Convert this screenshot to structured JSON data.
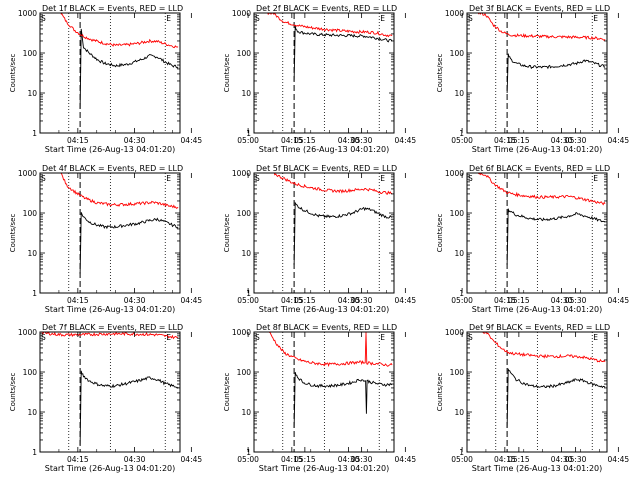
{
  "figure": {
    "xlabel": "Start Time (26-Aug-13 04:01:20)",
    "ylabel": "Counts/sec",
    "x_ticks": [
      "04:15",
      "04:30",
      "04:45",
      "05:00",
      "05:15",
      "05:30"
    ],
    "y_ticks": [
      "1",
      "10",
      "100",
      "1000"
    ],
    "marker_start": "S",
    "marker_end": "E"
  },
  "colors": {
    "events": "#000000",
    "lld": "#ff0000",
    "axes": "#000000"
  },
  "chart_data": [
    {
      "type": "line",
      "title": "Det 1f BLACK = Events, RED = LLD",
      "x_unit": "minutes after 04:00",
      "xlim": [
        5,
        42
      ],
      "ylim": [
        1,
        1000
      ],
      "yscale": "log",
      "vlines_dotted": [
        12.6,
        23.6,
        38.1
      ],
      "vline_dashed": 15.6,
      "series": [
        {
          "color": "#000000",
          "x": [
            15.6,
            15.9,
            16.5,
            18,
            20,
            22,
            25,
            28,
            30,
            32,
            34,
            36,
            38,
            40,
            41.5
          ],
          "y": [
            4,
            400,
            140,
            100,
            70,
            55,
            48,
            52,
            60,
            70,
            85,
            80,
            60,
            48,
            45
          ]
        },
        {
          "color": "#ff0000",
          "x": [
            10.5,
            12,
            14,
            15.5,
            17,
            19,
            22,
            25,
            28,
            31,
            34,
            36,
            38,
            40,
            41.5
          ],
          "y": [
            1000,
            600,
            380,
            300,
            250,
            210,
            175,
            155,
            160,
            175,
            200,
            195,
            170,
            150,
            140
          ]
        }
      ]
    },
    {
      "type": "line",
      "title": "Det 2f BLACK = Events, RED = LLD",
      "x_unit": "minutes after 04:00",
      "xlim": [
        5,
        42
      ],
      "ylim": [
        1,
        1000
      ],
      "yscale": "log",
      "vlines_dotted": [
        12.6,
        23.6,
        38.1
      ],
      "vline_dashed": 15.6,
      "series": [
        {
          "color": "#000000",
          "x": [
            15.6,
            15.9,
            16.5,
            18,
            20,
            22,
            25,
            28,
            31,
            34,
            36,
            38,
            40,
            41.5
          ],
          "y": [
            20,
            450,
            350,
            320,
            300,
            290,
            280,
            275,
            270,
            265,
            250,
            230,
            210,
            200
          ]
        },
        {
          "color": "#ff0000",
          "x": [
            8,
            10,
            12,
            13,
            14,
            15.5,
            17,
            20,
            24,
            28,
            32,
            36,
            38,
            40,
            41.5
          ],
          "y": [
            1000,
            1000,
            700,
            600,
            560,
            520,
            480,
            430,
            390,
            360,
            340,
            330,
            310,
            280,
            270
          ]
        }
      ]
    },
    {
      "type": "line",
      "title": "Det 3f BLACK = Events, RED = LLD",
      "x_unit": "minutes after 04:00",
      "xlim": [
        5,
        42
      ],
      "ylim": [
        1,
        1000
      ],
      "yscale": "log",
      "vlines_dotted": [
        12.6,
        23.6,
        38.1
      ],
      "vline_dashed": 15.6,
      "series": [
        {
          "color": "#000000",
          "x": [
            15.6,
            15.9,
            16.5,
            18,
            20,
            22,
            25,
            28,
            31,
            34,
            36,
            38,
            40,
            41.5
          ],
          "y": [
            10,
            90,
            70,
            55,
            48,
            45,
            44,
            46,
            50,
            55,
            65,
            58,
            50,
            45
          ]
        },
        {
          "color": "#ff0000",
          "x": [
            8,
            10,
            12,
            14,
            15.5,
            17,
            20,
            24,
            28,
            32,
            36,
            38,
            40,
            41.5
          ],
          "y": [
            1000,
            900,
            500,
            350,
            300,
            280,
            270,
            260,
            255,
            250,
            245,
            240,
            230,
            220
          ]
        }
      ]
    },
    {
      "type": "line",
      "title": "Det 4f BLACK = Events, RED = LLD",
      "x_unit": "minutes after 04:00",
      "xlim": [
        5,
        42
      ],
      "ylim": [
        1,
        1000
      ],
      "yscale": "log",
      "vlines_dotted": [
        12.6,
        23.6,
        38.1
      ],
      "vline_dashed": 15.6,
      "series": [
        {
          "color": "#000000",
          "x": [
            15.6,
            15.9,
            16.5,
            18,
            20,
            22,
            25,
            28,
            31,
            34,
            36,
            38,
            40,
            41.5
          ],
          "y": [
            3,
            100,
            80,
            60,
            50,
            45,
            45,
            50,
            55,
            65,
            70,
            60,
            50,
            45
          ]
        },
        {
          "color": "#ff0000",
          "x": [
            10.5,
            12,
            14,
            15.5,
            17,
            20,
            24,
            28,
            32,
            35,
            37,
            39,
            41.5
          ],
          "y": [
            1000,
            500,
            350,
            280,
            230,
            180,
            160,
            165,
            175,
            185,
            170,
            150,
            140
          ]
        }
      ]
    },
    {
      "type": "line",
      "title": "Det 5f BLACK = Events, RED = LLD",
      "x_unit": "minutes after 04:00",
      "xlim": [
        5,
        42
      ],
      "ylim": [
        1,
        1000
      ],
      "yscale": "log",
      "vlines_dotted": [
        12.6,
        23.6,
        38.1
      ],
      "vline_dashed": 15.6,
      "series": [
        {
          "color": "#000000",
          "x": [
            15.6,
            15.9,
            16.5,
            18,
            20,
            22,
            25,
            28,
            31,
            34,
            36,
            38,
            40,
            41.5
          ],
          "y": [
            5,
            170,
            150,
            120,
            100,
            85,
            80,
            85,
            100,
            130,
            120,
            95,
            80,
            78
          ]
        },
        {
          "color": "#ff0000",
          "x": [
            8,
            10,
            12,
            14,
            15.5,
            17,
            20,
            24,
            28,
            32,
            34,
            36,
            38,
            40,
            41.5
          ],
          "y": [
            1000,
            1000,
            800,
            650,
            550,
            500,
            430,
            370,
            350,
            380,
            400,
            380,
            340,
            320,
            310
          ]
        }
      ]
    },
    {
      "type": "line",
      "title": "Det 6f BLACK = Events, RED = LLD",
      "x_unit": "minutes after 04:00",
      "xlim": [
        5,
        42
      ],
      "ylim": [
        1,
        1000
      ],
      "yscale": "log",
      "vlines_dotted": [
        12.6,
        23.6,
        38.1
      ],
      "vline_dashed": 15.6,
      "series": [
        {
          "color": "#000000",
          "x": [
            15.6,
            15.9,
            16.5,
            18,
            20,
            22,
            25,
            28,
            31,
            34,
            36,
            38,
            40,
            41.5
          ],
          "y": [
            5,
            120,
            110,
            90,
            80,
            72,
            68,
            72,
            80,
            95,
            85,
            75,
            65,
            60
          ]
        },
        {
          "color": "#ff0000",
          "x": [
            8,
            10,
            12,
            14,
            15.5,
            17,
            20,
            24,
            28,
            32,
            35,
            38,
            40,
            41.5
          ],
          "y": [
            1000,
            900,
            550,
            400,
            330,
            300,
            270,
            250,
            250,
            260,
            230,
            200,
            180,
            170
          ]
        }
      ]
    },
    {
      "type": "line",
      "title": "Det 7f BLACK = Events, RED = LLD",
      "x_unit": "minutes after 04:00",
      "xlim": [
        5,
        42
      ],
      "ylim": [
        1,
        1000
      ],
      "yscale": "log",
      "vlines_dotted": [
        12.6,
        23.6,
        38.1
      ],
      "vline_dashed": 15.6,
      "series": [
        {
          "color": "#000000",
          "x": [
            15.6,
            15.9,
            16.5,
            18,
            20,
            22,
            25,
            28,
            31,
            34,
            36,
            38,
            40,
            41.5
          ],
          "y": [
            1.5,
            100,
            80,
            60,
            50,
            45,
            45,
            52,
            60,
            72,
            65,
            52,
            45,
            42
          ]
        },
        {
          "color": "#ff0000",
          "x": [
            5.5,
            8,
            11,
            14,
            17,
            20,
            24,
            28,
            32,
            36,
            38,
            40,
            41.5
          ],
          "y": [
            950,
            900,
            850,
            850,
            860,
            880,
            900,
            900,
            880,
            850,
            800,
            750,
            720
          ]
        }
      ]
    },
    {
      "type": "line",
      "title": "Det 8f BLACK = Events, RED = LLD",
      "x_unit": "minutes after 04:00",
      "xlim": [
        5,
        42
      ],
      "ylim": [
        1,
        1000
      ],
      "yscale": "log",
      "vlines_dotted": [
        12.6,
        23.6,
        38.1
      ],
      "vline_dashed": 15.6,
      "series": [
        {
          "color": "#000000",
          "x": [
            15.6,
            15.9,
            16.5,
            18,
            20,
            22,
            25,
            28,
            31,
            33,
            34.5,
            34.7,
            34.9,
            36,
            38,
            40,
            41.5
          ],
          "y": [
            4,
            100,
            75,
            55,
            48,
            45,
            45,
            48,
            55,
            65,
            60,
            9,
            60,
            55,
            50,
            48,
            50
          ]
        },
        {
          "color": "#ff0000",
          "x": [
            9,
            11,
            13,
            15.5,
            17,
            20,
            24,
            28,
            31,
            33,
            34.4,
            34.6,
            34.8,
            36,
            38,
            40,
            41.5
          ],
          "y": [
            1000,
            500,
            300,
            230,
            200,
            170,
            155,
            160,
            170,
            175,
            170,
            1000,
            170,
            165,
            160,
            150,
            150
          ]
        }
      ]
    },
    {
      "type": "line",
      "title": "Det 9f BLACK = Events, RED = LLD",
      "x_unit": "minutes after 04:00",
      "xlim": [
        5,
        42
      ],
      "ylim": [
        1,
        1000
      ],
      "yscale": "log",
      "vlines_dotted": [
        12.6,
        23.6,
        38.1
      ],
      "vline_dashed": 15.6,
      "series": [
        {
          "color": "#000000",
          "x": [
            15.6,
            15.9,
            16.5,
            18,
            20,
            22,
            25,
            28,
            31,
            34,
            36,
            38,
            40,
            41.5
          ],
          "y": [
            4,
            120,
            95,
            65,
            52,
            45,
            42,
            45,
            52,
            65,
            60,
            50,
            45,
            42
          ]
        },
        {
          "color": "#ff0000",
          "x": [
            8,
            10,
            12,
            14,
            15.5,
            17,
            20,
            24,
            28,
            32,
            35,
            38,
            40,
            41.5
          ],
          "y": [
            1000,
            1000,
            600,
            400,
            320,
            290,
            270,
            250,
            245,
            250,
            240,
            210,
            190,
            180
          ]
        }
      ]
    }
  ]
}
